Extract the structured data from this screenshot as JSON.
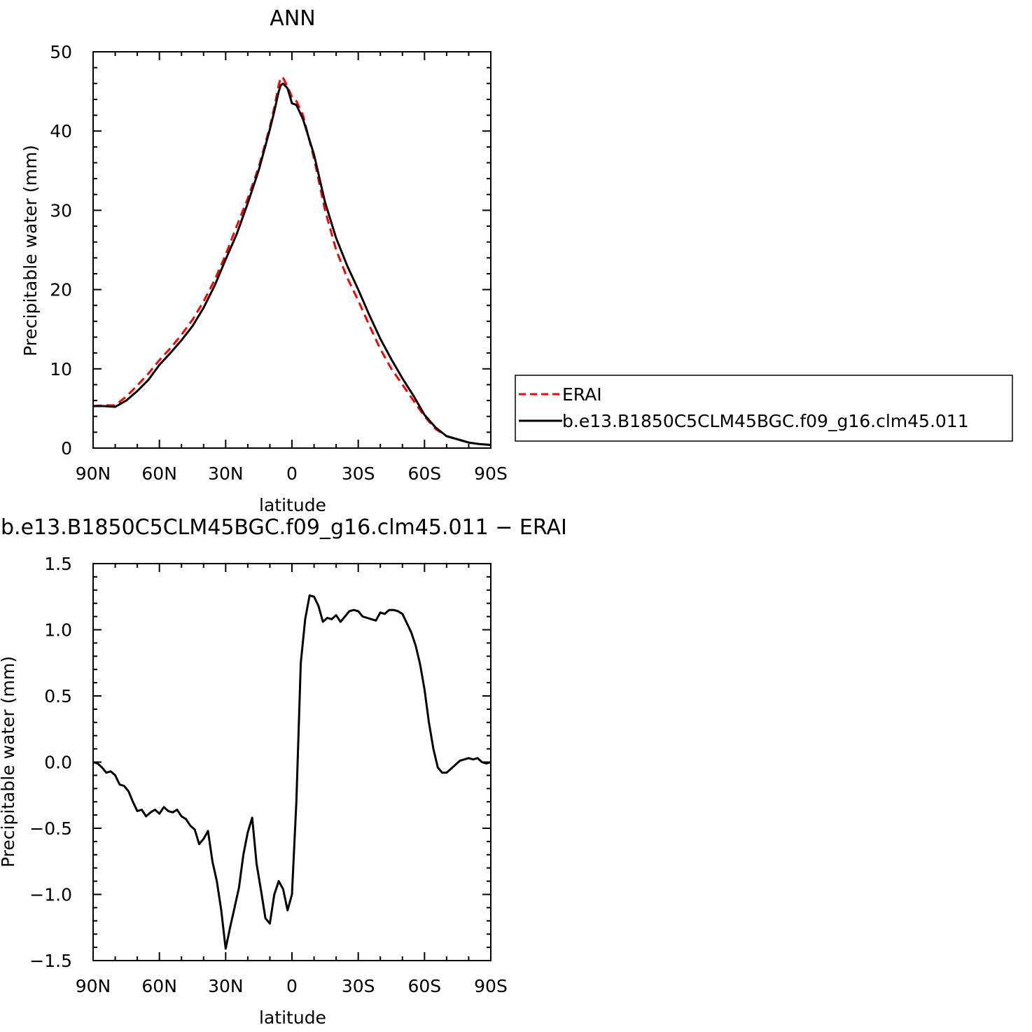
{
  "chart_data": [
    {
      "type": "line",
      "title": "ANN",
      "xlabel": "latitude",
      "ylabel": "Precipitable water (mm)",
      "xlim": [
        90,
        -90
      ],
      "ylim": [
        0,
        50
      ],
      "xticks": [
        90,
        60,
        30,
        0,
        -30,
        -60,
        -90
      ],
      "xtick_labels": [
        "90N",
        "60N",
        "30N",
        "0",
        "30S",
        "60S",
        "90S"
      ],
      "yticks": [
        0,
        10,
        20,
        30,
        40,
        50
      ],
      "ytick_labels": [
        "0",
        "10",
        "20",
        "30",
        "40",
        "50"
      ],
      "legend_position": "right",
      "series": [
        {
          "name": "ERAI",
          "color": "#ff0000",
          "style": "dashed",
          "x": [
            90,
            85,
            80,
            75,
            70,
            65,
            60,
            55,
            50,
            45,
            40,
            35,
            30,
            25,
            20,
            15,
            10,
            8,
            6,
            5,
            4,
            2,
            0,
            -2,
            -5,
            -10,
            -15,
            -20,
            -25,
            -30,
            -35,
            -40,
            -45,
            -50,
            -55,
            -60,
            -65,
            -70,
            -75,
            -80,
            -85,
            -90
          ],
          "y": [
            5.3,
            5.4,
            5.4,
            6.5,
            7.9,
            9.4,
            11.1,
            12.6,
            14.3,
            16.2,
            18.5,
            21.2,
            24.4,
            28.0,
            31.5,
            35.5,
            40.5,
            43.0,
            45.8,
            46.8,
            46.7,
            45.6,
            44.3,
            43.8,
            42.0,
            36.5,
            30.0,
            25.0,
            21.5,
            18.6,
            15.5,
            12.5,
            10.0,
            8.0,
            6.0,
            4.0,
            2.4,
            1.5,
            1.1,
            0.7,
            0.5,
            0.4
          ]
        },
        {
          "name": "b.e13.B1850C5CLM45BGC.f09_g16.clm45.011",
          "color": "#000000",
          "style": "solid",
          "x": [
            90,
            85,
            80,
            75,
            70,
            65,
            60,
            55,
            50,
            45,
            40,
            35,
            30,
            25,
            20,
            15,
            10,
            8,
            6,
            5,
            4,
            2,
            0,
            -2,
            -5,
            -10,
            -15,
            -20,
            -25,
            -30,
            -35,
            -40,
            -45,
            -50,
            -55,
            -60,
            -65,
            -70,
            -75,
            -80,
            -85,
            -90
          ],
          "y": [
            5.3,
            5.3,
            5.2,
            6.0,
            7.2,
            8.6,
            10.5,
            12.0,
            13.6,
            15.4,
            17.7,
            20.5,
            23.8,
            27.0,
            30.9,
            35.1,
            40.2,
            42.5,
            45.0,
            45.8,
            46.0,
            45.4,
            43.5,
            43.3,
            41.5,
            37.0,
            31.0,
            26.5,
            23.0,
            20.0,
            16.8,
            13.8,
            11.2,
            8.8,
            6.6,
            4.2,
            2.6,
            1.5,
            1.1,
            0.7,
            0.5,
            0.4
          ]
        }
      ]
    },
    {
      "type": "line",
      "title": "b.e13.B1850C5CLM45BGC.f09_g16.clm45.011 − ERAI",
      "xlabel": "latitude",
      "ylabel": "Precipitable water (mm)",
      "xlim": [
        90,
        -90
      ],
      "ylim": [
        -1.5,
        1.5
      ],
      "xticks": [
        90,
        60,
        30,
        0,
        -30,
        -60,
        -90
      ],
      "xtick_labels": [
        "90N",
        "60N",
        "30N",
        "0",
        "30S",
        "60S",
        "90S"
      ],
      "yticks": [
        -1.5,
        -1.0,
        -0.5,
        0.0,
        0.5,
        1.0,
        1.5
      ],
      "ytick_labels": [
        "−1.5",
        "−1.0",
        "−0.5",
        "0.0",
        "0.5",
        "1.0",
        "1.5"
      ],
      "series": [
        {
          "name": "",
          "color": "#000000",
          "style": "solid",
          "x": [
            90,
            88,
            86,
            84,
            82,
            80,
            78,
            76,
            74,
            72,
            70,
            68,
            66,
            64,
            62,
            60,
            58,
            56,
            54,
            52,
            50,
            48,
            46,
            44,
            42,
            40,
            38,
            36,
            34,
            32,
            30,
            28,
            26,
            24,
            22,
            20,
            18,
            16,
            14,
            12,
            10,
            8,
            6,
            4,
            2,
            0,
            -2,
            -4,
            -6,
            -8,
            -10,
            -12,
            -14,
            -16,
            -18,
            -20,
            -22,
            -24,
            -26,
            -28,
            -30,
            -32,
            -34,
            -36,
            -38,
            -40,
            -42,
            -44,
            -46,
            -48,
            -50,
            -52,
            -54,
            -56,
            -58,
            -60,
            -62,
            -64,
            -66,
            -68,
            -70,
            -72,
            -74,
            -76,
            -78,
            -80,
            -82,
            -84,
            -86,
            -88,
            -90
          ],
          "y": [
            0.0,
            -0.01,
            -0.04,
            -0.08,
            -0.07,
            -0.1,
            -0.17,
            -0.18,
            -0.22,
            -0.3,
            -0.37,
            -0.36,
            -0.41,
            -0.38,
            -0.36,
            -0.39,
            -0.34,
            -0.37,
            -0.38,
            -0.36,
            -0.41,
            -0.43,
            -0.48,
            -0.51,
            -0.62,
            -0.58,
            -0.52,
            -0.75,
            -0.9,
            -1.12,
            -1.41,
            -1.25,
            -1.1,
            -0.95,
            -0.7,
            -0.53,
            -0.42,
            -0.77,
            -0.97,
            -1.18,
            -1.22,
            -1.0,
            -0.9,
            -0.96,
            -1.12,
            -1.0,
            -0.3,
            0.75,
            1.08,
            1.26,
            1.25,
            1.18,
            1.06,
            1.09,
            1.08,
            1.11,
            1.06,
            1.1,
            1.14,
            1.15,
            1.14,
            1.1,
            1.09,
            1.08,
            1.07,
            1.13,
            1.12,
            1.15,
            1.15,
            1.14,
            1.12,
            1.05,
            0.98,
            0.88,
            0.74,
            0.55,
            0.3,
            0.1,
            -0.04,
            -0.08,
            -0.08,
            -0.05,
            -0.02,
            0.01,
            0.02,
            0.03,
            0.02,
            0.03,
            0.0,
            -0.01,
            0.0
          ]
        }
      ]
    }
  ]
}
